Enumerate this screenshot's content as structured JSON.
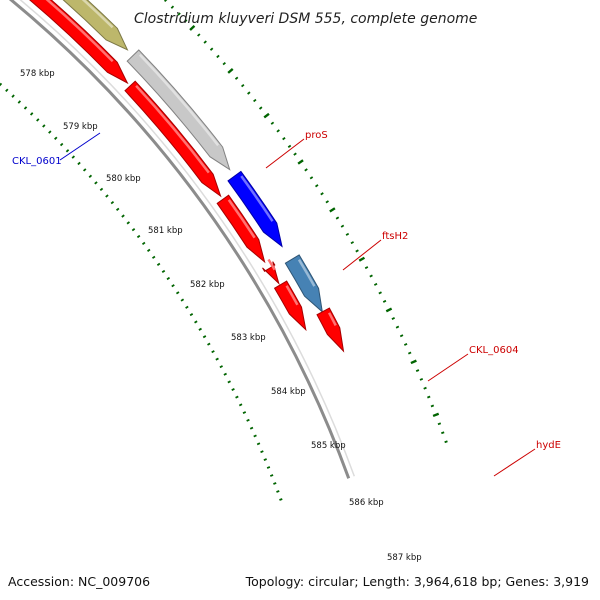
{
  "title": "Clostridium kluyveri DSM 555, complete genome",
  "footer": {
    "accession": "Accession: NC_009706",
    "topology": "Topology: circular; Length: 3,964,618 bp; Genes: 3,919"
  },
  "ticks": [
    "578 kbp",
    "579 kbp",
    "580 kbp",
    "581 kbp",
    "582 kbp",
    "583 kbp",
    "584 kbp",
    "585 kbp",
    "586 kbp",
    "587 kbp"
  ],
  "genes": [
    {
      "label": "",
      "color": "#00c8c8"
    },
    {
      "label": "",
      "color": "#ff0000"
    },
    {
      "label": "",
      "color": "#ff0000"
    },
    {
      "label": "CKL_0601",
      "color": "#0000ff"
    },
    {
      "label": "",
      "color": "#ff0000"
    },
    {
      "label": "proS",
      "color": "#f08080"
    },
    {
      "label": "",
      "color": "#ff0000"
    },
    {
      "label": "ftsH2",
      "color": "#bdb76b"
    },
    {
      "label": "",
      "color": "#ff0000"
    },
    {
      "label": "CKL_0604",
      "color": "#c8c8c8"
    },
    {
      "label": "",
      "color": "#ff0000"
    },
    {
      "label": "hydE",
      "color": "#0000ff"
    },
    {
      "label": "",
      "color": "#ff0000"
    },
    {
      "label": "",
      "color": "#ff0000"
    },
    {
      "label": "",
      "color": "#4682b4"
    },
    {
      "label": "",
      "color": "#ff0000"
    }
  ],
  "colors": {
    "backbone": "#8c8c8c",
    "tick_dots": "#006400",
    "red_label": "#cc0000",
    "blue_label": "#0000cc"
  }
}
